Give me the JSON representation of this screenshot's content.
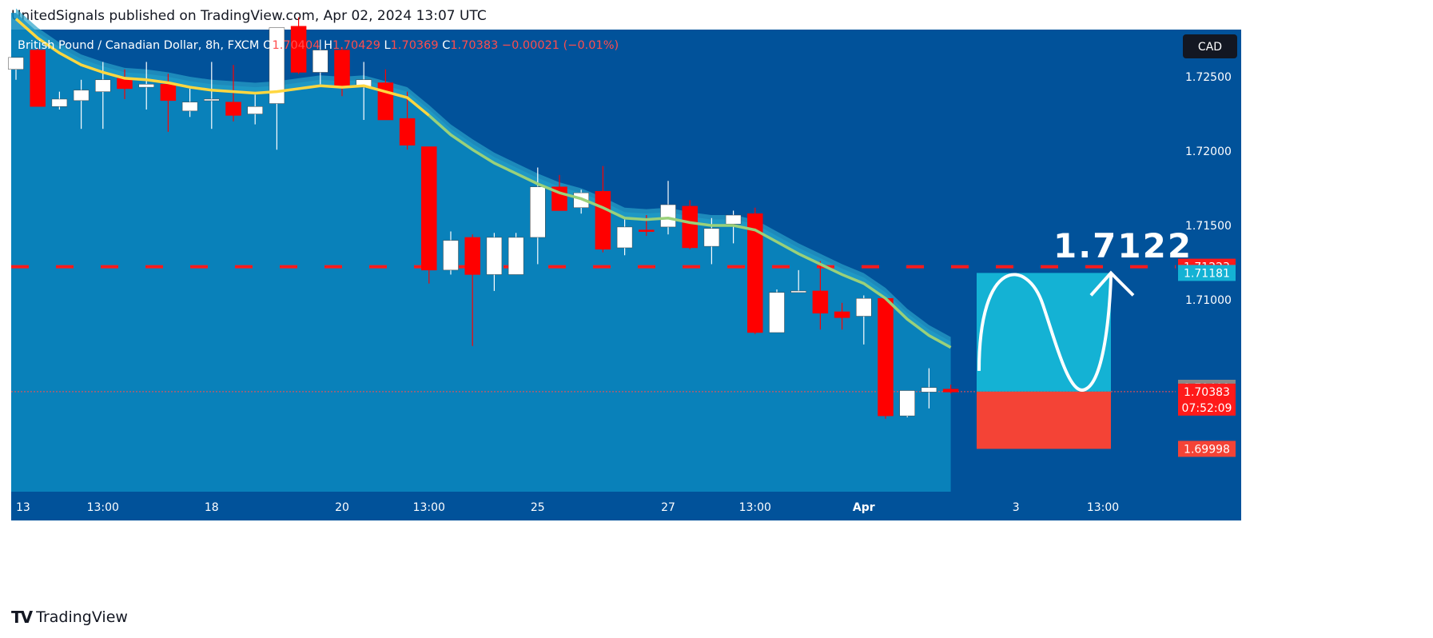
{
  "header": {
    "text": "UnitedSignals published on TradingView.com, Apr 02, 2024 13:07 UTC"
  },
  "footer": {
    "brand": "TradingView",
    "logo": "TV"
  },
  "colors": {
    "bg": "#01529a",
    "up": "#ffffff",
    "down": "#ff0000",
    "ema": "#ffd740",
    "ema2": "#9ad17a",
    "band": "#2aa3c9",
    "target": "#14b2d4",
    "stop": "#f44336",
    "redline": "#ff1a1a"
  },
  "chart_data": {
    "type": "candlestick",
    "symbol_line": {
      "name": "British Pound / Canadian Dollar, 8h, FXCM",
      "o_label": "O",
      "o": "1.70404",
      "h_label": "H",
      "h": "1.70429",
      "l_label": "L",
      "l": "1.70369",
      "c_label": "C",
      "c": "1.70383",
      "change": "−0.00021 (−0.01%)"
    },
    "currency_badge": "CAD",
    "y_axis": {
      "ylim": [
        1.6971,
        1.7271
      ],
      "ticks": [
        "1.72500",
        "1.72000",
        "1.71500",
        "1.71000"
      ],
      "tick_values": [
        1.725,
        1.72,
        1.715,
        1.71
      ]
    },
    "x_axis": {
      "ticks": [
        "13",
        "13:00",
        "18",
        "20",
        "13:00",
        "25",
        "27",
        "13:00",
        "Apr",
        "3",
        "13:00"
      ],
      "tick_bars": [
        0,
        4,
        9,
        15,
        19,
        24,
        30,
        34,
        39,
        46,
        50
      ]
    },
    "candles": [
      {
        "o": 1.7255,
        "h": 1.7262,
        "l": 1.7248,
        "c": 1.7263
      },
      {
        "o": 1.7268,
        "h": 1.7269,
        "l": 1.723,
        "c": 1.723
      },
      {
        "o": 1.723,
        "h": 1.724,
        "l": 1.7228,
        "c": 1.7235
      },
      {
        "o": 1.7234,
        "h": 1.7248,
        "l": 1.7215,
        "c": 1.7241
      },
      {
        "o": 1.724,
        "h": 1.726,
        "l": 1.7215,
        "c": 1.7248
      },
      {
        "o": 1.7249,
        "h": 1.7255,
        "l": 1.7235,
        "c": 1.7242
      },
      {
        "o": 1.7243,
        "h": 1.726,
        "l": 1.7228,
        "c": 1.7245
      },
      {
        "o": 1.7245,
        "h": 1.7252,
        "l": 1.7213,
        "c": 1.7234
      },
      {
        "o": 1.7227,
        "h": 1.7242,
        "l": 1.7223,
        "c": 1.7233
      },
      {
        "o": 1.7235,
        "h": 1.726,
        "l": 1.7215,
        "c": 1.7235
      },
      {
        "o": 1.7233,
        "h": 1.7258,
        "l": 1.722,
        "c": 1.7224
      },
      {
        "o": 1.7225,
        "h": 1.7238,
        "l": 1.7218,
        "c": 1.723
      },
      {
        "o": 1.7232,
        "h": 1.7288,
        "l": 1.7201,
        "c": 1.7283
      },
      {
        "o": 1.7284,
        "h": 1.729,
        "l": 1.7252,
        "c": 1.7253
      },
      {
        "o": 1.7253,
        "h": 1.7275,
        "l": 1.7245,
        "c": 1.7268
      },
      {
        "o": 1.7268,
        "h": 1.727,
        "l": 1.7237,
        "c": 1.7243
      },
      {
        "o": 1.7243,
        "h": 1.726,
        "l": 1.7221,
        "c": 1.7248
      },
      {
        "o": 1.7246,
        "h": 1.7255,
        "l": 1.7221,
        "c": 1.7221
      },
      {
        "o": 1.7222,
        "h": 1.724,
        "l": 1.7201,
        "c": 1.7204
      },
      {
        "o": 1.7203,
        "h": 1.7203,
        "l": 1.7111,
        "c": 1.712
      },
      {
        "o": 1.712,
        "h": 1.7146,
        "l": 1.7117,
        "c": 1.714
      },
      {
        "o": 1.7142,
        "h": 1.7144,
        "l": 1.7069,
        "c": 1.7117
      },
      {
        "o": 1.7117,
        "h": 1.7145,
        "l": 1.7106,
        "c": 1.7142
      },
      {
        "o": 1.7117,
        "h": 1.7145,
        "l": 1.7117,
        "c": 1.7142
      },
      {
        "o": 1.7142,
        "h": 1.7189,
        "l": 1.7124,
        "c": 1.7176
      },
      {
        "o": 1.7176,
        "h": 1.7184,
        "l": 1.7162,
        "c": 1.716
      },
      {
        "o": 1.7162,
        "h": 1.7174,
        "l": 1.7158,
        "c": 1.7172
      },
      {
        "o": 1.7173,
        "h": 1.719,
        "l": 1.7132,
        "c": 1.7134
      },
      {
        "o": 1.7135,
        "h": 1.7154,
        "l": 1.713,
        "c": 1.7149
      },
      {
        "o": 1.7147,
        "h": 1.7157,
        "l": 1.7143,
        "c": 1.7146
      },
      {
        "o": 1.7149,
        "h": 1.718,
        "l": 1.7144,
        "c": 1.7164
      },
      {
        "o": 1.7163,
        "h": 1.7167,
        "l": 1.7134,
        "c": 1.7135
      },
      {
        "o": 1.7136,
        "h": 1.7155,
        "l": 1.7124,
        "c": 1.7148
      },
      {
        "o": 1.7151,
        "h": 1.716,
        "l": 1.7138,
        "c": 1.7157
      },
      {
        "o": 1.7158,
        "h": 1.7162,
        "l": 1.7077,
        "c": 1.7078
      },
      {
        "o": 1.7078,
        "h": 1.7107,
        "l": 1.7078,
        "c": 1.7105
      },
      {
        "o": 1.7105,
        "h": 1.712,
        "l": 1.7105,
        "c": 1.7106
      },
      {
        "o": 1.7106,
        "h": 1.7126,
        "l": 1.708,
        "c": 1.7091
      },
      {
        "o": 1.7092,
        "h": 1.7098,
        "l": 1.708,
        "c": 1.7088
      },
      {
        "o": 1.7089,
        "h": 1.7103,
        "l": 1.707,
        "c": 1.7101
      },
      {
        "o": 1.7101,
        "h": 1.7101,
        "l": 1.702,
        "c": 1.7022
      },
      {
        "o": 1.7022,
        "h": 1.7039,
        "l": 1.7021,
        "c": 1.7039
      },
      {
        "o": 1.7038,
        "h": 1.7054,
        "l": 1.7027,
        "c": 1.7041
      },
      {
        "o": 1.704,
        "h": 1.7043,
        "l": 1.7037,
        "c": 1.7038
      }
    ],
    "ema": [
      1.7289,
      1.7276,
      1.7266,
      1.7258,
      1.7253,
      1.7249,
      1.7248,
      1.7246,
      1.7243,
      1.7241,
      1.724,
      1.7239,
      1.724,
      1.7242,
      1.7244,
      1.7243,
      1.7244,
      1.724,
      1.7236,
      1.7224,
      1.7211,
      1.7201,
      1.7192,
      1.7185,
      1.7178,
      1.7172,
      1.7168,
      1.7162,
      1.7155,
      1.7154,
      1.7155,
      1.7152,
      1.715,
      1.715,
      1.7147,
      1.7139,
      1.7131,
      1.7124,
      1.7117,
      1.7111,
      1.7101,
      1.7087,
      1.7076,
      1.7068
    ],
    "price_labels": [
      {
        "text": "1.71223",
        "price": 1.71223,
        "color": "#ff1a1a"
      },
      {
        "text": "1.71181",
        "price": 1.71181,
        "color": "#14b2d4"
      },
      {
        "text": "1.70409",
        "price": 1.70409,
        "color": "#888888"
      },
      {
        "text": "1.70383",
        "price": 1.70383,
        "color": "#ff1a1a",
        "sub": "07:52:09"
      },
      {
        "text": "1.69998",
        "price": 1.69998,
        "color": "#f44336"
      }
    ],
    "annotation": {
      "text": "1.7122",
      "price": 1.7122
    },
    "position": {
      "entry": 1.70383,
      "target": 1.71181,
      "stop": 1.69998
    }
  }
}
